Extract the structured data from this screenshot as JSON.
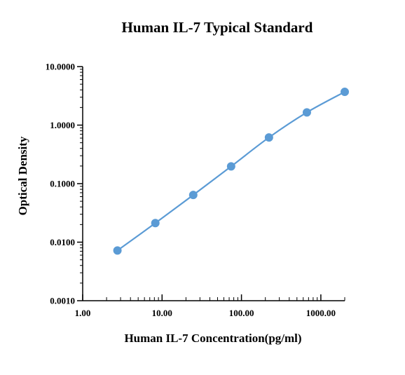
{
  "chart_data": {
    "type": "line",
    "title": "Human IL-7 Typical Standard",
    "xlabel": "Human IL-7 Concentration(pg/ml)",
    "ylabel": "Optical Density",
    "x_scale": "log",
    "y_scale": "log",
    "xlim": [
      1,
      2000
    ],
    "ylim": [
      0.001,
      10
    ],
    "x_ticks": [
      {
        "value": 1,
        "label": "1.00"
      },
      {
        "value": 10,
        "label": "10.00"
      },
      {
        "value": 100,
        "label": "100.00"
      },
      {
        "value": 1000,
        "label": "1000.00"
      }
    ],
    "y_ticks": [
      {
        "value": 0.001,
        "label": "0.0010"
      },
      {
        "value": 0.01,
        "label": "0.0100"
      },
      {
        "value": 0.1,
        "label": "0.1000"
      },
      {
        "value": 1,
        "label": "1.0000"
      },
      {
        "value": 10,
        "label": "10.0000"
      }
    ],
    "grid": false,
    "series": [
      {
        "color": "#5b9bd5",
        "points": [
          {
            "x": 2.74,
            "y": 0.0072
          },
          {
            "x": 8.23,
            "y": 0.0212
          },
          {
            "x": 24.7,
            "y": 0.064
          },
          {
            "x": 74.1,
            "y": 0.197
          },
          {
            "x": 222,
            "y": 0.615
          },
          {
            "x": 667,
            "y": 1.65
          },
          {
            "x": 2000,
            "y": 3.7
          }
        ]
      }
    ]
  }
}
